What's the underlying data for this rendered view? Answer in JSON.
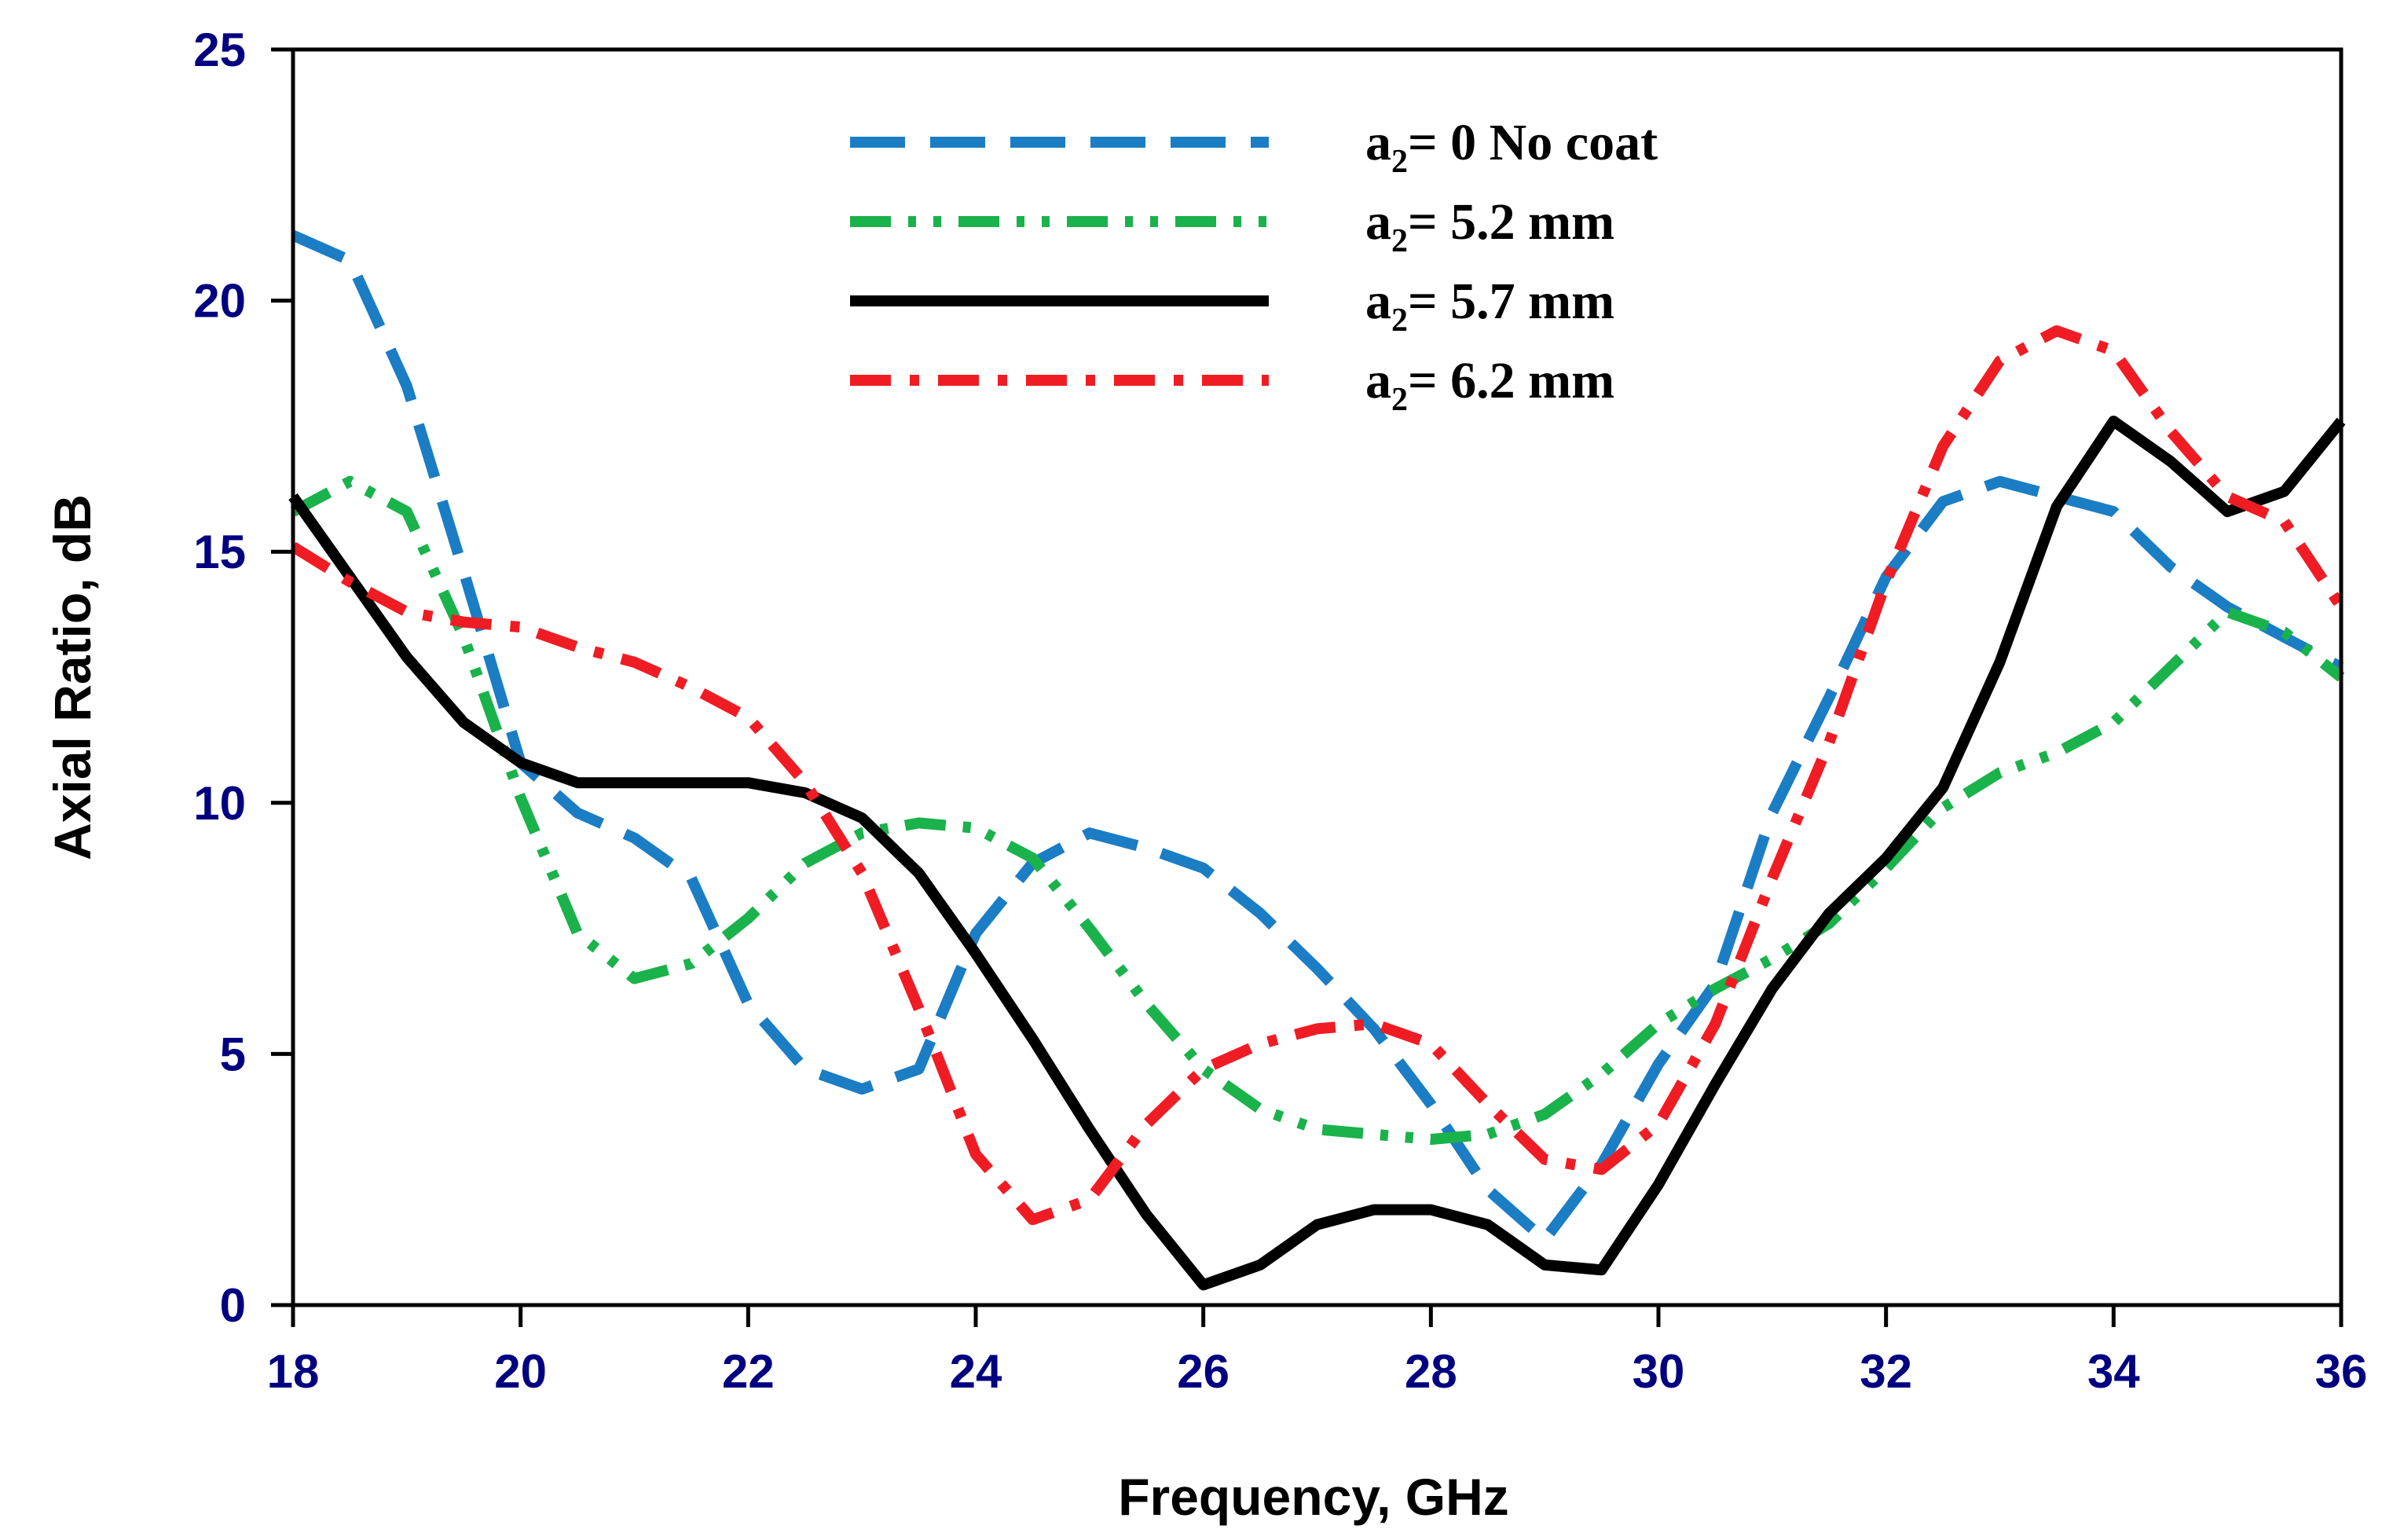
{
  "chart_data": {
    "type": "line",
    "xlabel": "Frequency, GHz",
    "ylabel": "Axial Ratio, dB",
    "xlim": [
      18,
      36
    ],
    "ylim": [
      0,
      25
    ],
    "xticks": [
      18,
      20,
      22,
      24,
      26,
      28,
      30,
      32,
      34,
      36
    ],
    "yticks": [
      0,
      5,
      10,
      15,
      20,
      25
    ],
    "tick_color": "#000080",
    "grid": false,
    "legend_position": "top-center",
    "series": [
      {
        "name": "a2= 0 No coat",
        "legend_main": "a",
        "legend_sub": "2",
        "legend_rest": "= 0 No coat",
        "color": "#1B7DC4",
        "style": "dashed",
        "x": [
          18,
          18.5,
          19,
          19.5,
          20,
          20.5,
          21,
          21.5,
          22,
          22.5,
          23,
          23.5,
          24,
          24.5,
          25,
          25.5,
          26,
          26.5,
          27,
          27.5,
          28,
          28.5,
          29,
          29.5,
          30,
          30.5,
          31,
          31.5,
          32,
          32.5,
          33,
          33.5,
          34,
          34.5,
          35,
          35.5,
          36
        ],
        "values": [
          21.3,
          20.8,
          18.3,
          14.6,
          10.8,
          9.8,
          9.3,
          8.5,
          6.0,
          4.7,
          4.3,
          4.7,
          7.4,
          8.8,
          9.4,
          9.1,
          8.7,
          7.8,
          6.7,
          5.5,
          4.0,
          2.3,
          1.3,
          2.8,
          4.8,
          6.4,
          9.8,
          12.1,
          14.5,
          16.0,
          16.4,
          16.1,
          15.8,
          14.7,
          13.9,
          13.3,
          12.7
        ]
      },
      {
        "name": "a2= 5.2 mm",
        "legend_main": "a",
        "legend_sub": "2",
        "legend_rest": "= 5.2 mm",
        "color": "#1AB24B",
        "style": "dash-dot-dot",
        "x": [
          18,
          18.5,
          19,
          19.5,
          20,
          20.5,
          21,
          21.5,
          22,
          22.5,
          23,
          23.5,
          24,
          24.5,
          25,
          25.5,
          26,
          26.5,
          27,
          27.5,
          28,
          28.5,
          29,
          29.5,
          30,
          30.5,
          31,
          31.5,
          32,
          32.5,
          33,
          33.5,
          34,
          34.5,
          35,
          35.5,
          36
        ],
        "values": [
          15.8,
          16.4,
          15.8,
          13.3,
          10.1,
          7.4,
          6.5,
          6.8,
          7.7,
          8.8,
          9.4,
          9.6,
          9.5,
          8.9,
          7.5,
          6.0,
          4.7,
          3.9,
          3.5,
          3.4,
          3.3,
          3.4,
          3.8,
          4.6,
          5.6,
          6.3,
          6.9,
          7.6,
          8.7,
          9.9,
          10.6,
          11.0,
          11.6,
          12.7,
          13.8,
          13.4,
          12.5
        ]
      },
      {
        "name": "a2= 5.7 mm",
        "legend_main": "a",
        "legend_sub": "2",
        "legend_rest": "= 5.7 mm",
        "color": "#000000",
        "style": "solid",
        "x": [
          18,
          18.5,
          19,
          19.5,
          20,
          20.5,
          21,
          21.5,
          22,
          22.5,
          23,
          23.5,
          24,
          24.5,
          25,
          25.5,
          26,
          26.5,
          27,
          27.5,
          28,
          28.5,
          29,
          29.5,
          30,
          30.5,
          31,
          31.5,
          32,
          32.5,
          33,
          33.5,
          34,
          34.5,
          35,
          35.5,
          36
        ],
        "values": [
          16.1,
          14.5,
          12.9,
          11.6,
          10.8,
          10.4,
          10.4,
          10.4,
          10.4,
          10.2,
          9.7,
          8.6,
          7.0,
          5.3,
          3.5,
          1.8,
          0.4,
          0.8,
          1.6,
          1.9,
          1.9,
          1.6,
          0.8,
          0.7,
          2.4,
          4.4,
          6.3,
          7.8,
          8.9,
          10.3,
          12.8,
          15.9,
          17.6,
          16.8,
          15.8,
          16.2,
          17.6
        ]
      },
      {
        "name": "a2= 6.2 mm",
        "legend_main": "a",
        "legend_sub": "2",
        "legend_rest": "= 6.2 mm",
        "color": "#F01C24",
        "style": "dash-dot",
        "x": [
          18,
          18.5,
          19,
          19.5,
          20,
          20.5,
          21,
          21.5,
          22,
          22.5,
          23,
          23.5,
          24,
          24.5,
          25,
          25.5,
          26,
          26.5,
          27,
          27.5,
          28,
          28.5,
          29,
          29.5,
          30,
          30.5,
          31,
          31.5,
          32,
          32.5,
          33,
          33.5,
          34,
          34.5,
          35,
          35.5,
          36
        ],
        "values": [
          15.1,
          14.4,
          13.8,
          13.6,
          13.5,
          13.1,
          12.8,
          12.3,
          11.7,
          10.4,
          8.6,
          5.9,
          3.0,
          1.7,
          2.1,
          3.6,
          4.7,
          5.2,
          5.5,
          5.6,
          5.2,
          4.0,
          2.9,
          2.7,
          3.6,
          5.6,
          8.5,
          11.2,
          14.4,
          17.1,
          18.8,
          19.4,
          19.0,
          17.4,
          16.1,
          15.6,
          13.9
        ]
      }
    ]
  }
}
